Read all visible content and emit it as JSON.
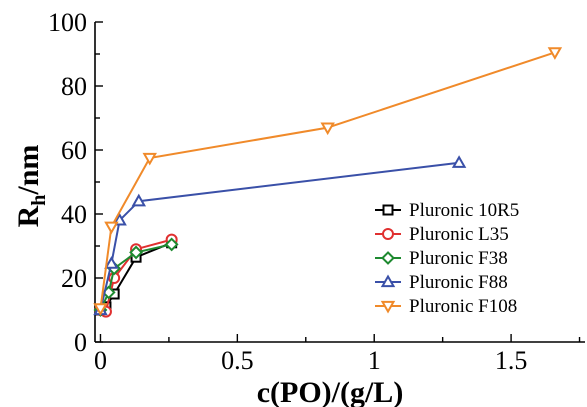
{
  "chart_data": {
    "type": "line",
    "title": "",
    "xlabel": "c(PO)/(g/L)",
    "ylabel_main": "R",
    "ylabel_sub": "h",
    "ylabel_suffix": "/nm",
    "xlim": [
      -0.02,
      1.77
    ],
    "ylim": [
      0,
      100
    ],
    "xticks": [
      0,
      0.5,
      1,
      1.5
    ],
    "xtick_labels": [
      "0",
      "0.5",
      "1",
      "1.5"
    ],
    "yticks": [
      0,
      20,
      40,
      60,
      80,
      100
    ],
    "ytick_labels": [
      "0",
      "20",
      "40",
      "60",
      "80",
      "100"
    ],
    "grid": false,
    "legend_position": "right",
    "series": [
      {
        "name": "Pluronic 10R5",
        "color": "#000000",
        "marker": "square",
        "x": [
          0.0,
          0.02,
          0.05,
          0.13,
          0.26
        ],
        "y": [
          10,
          11,
          15,
          26.5,
          31
        ]
      },
      {
        "name": "Pluronic L35",
        "color": "#e03030",
        "marker": "circle",
        "x": [
          0.0,
          0.02,
          0.05,
          0.13,
          0.26
        ],
        "y": [
          10,
          9.5,
          20,
          29,
          32
        ]
      },
      {
        "name": "Pluronic F38",
        "color": "#1e8a30",
        "marker": "diamond",
        "x": [
          0.0,
          0.03,
          0.05,
          0.13,
          0.26
        ],
        "y": [
          10,
          15.5,
          23,
          28,
          30.5
        ]
      },
      {
        "name": "Pluronic F88",
        "color": "#3a50a8",
        "marker": "triangle-up",
        "x": [
          0.0,
          0.04,
          0.07,
          0.14,
          1.31
        ],
        "y": [
          10,
          24.5,
          38,
          44,
          56
        ]
      },
      {
        "name": "Pluronic F108",
        "color": "#f08a2a",
        "marker": "triangle-down",
        "x": [
          0.0,
          0.04,
          0.18,
          0.83,
          1.66
        ],
        "y": [
          10.5,
          36,
          57.5,
          67,
          90.5
        ]
      }
    ]
  }
}
